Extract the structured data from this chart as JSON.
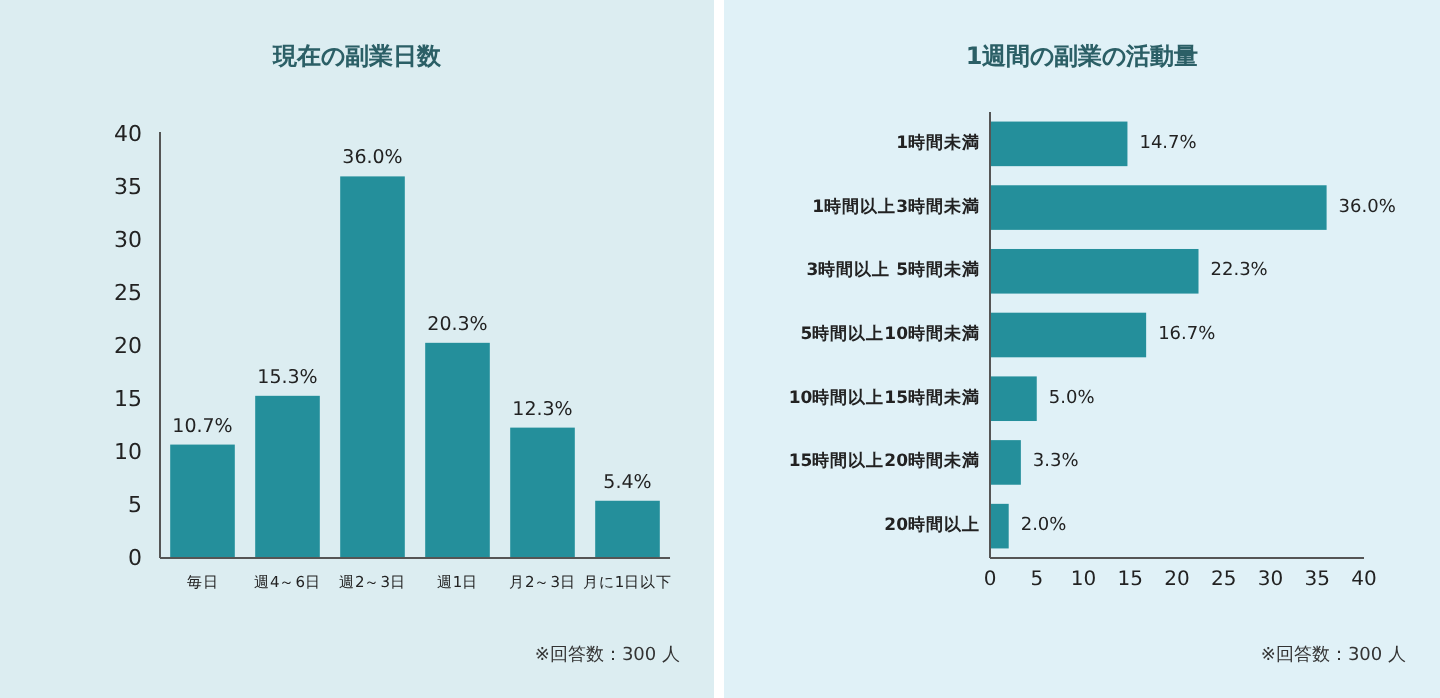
{
  "chart_data": [
    {
      "type": "bar",
      "title": "現在の副業日数",
      "categories": [
        "毎日",
        "週4～6日",
        "週2～3日",
        "週1日",
        "月2～3日",
        "月に1日以下"
      ],
      "values": [
        10.7,
        15.3,
        36.0,
        20.3,
        12.3,
        5.4
      ],
      "value_labels": [
        "10.7%",
        "15.3%",
        "36.0%",
        "20.3%",
        "12.3%",
        "5.4%"
      ],
      "color": "#248f9b",
      "ylim": [
        0,
        40
      ],
      "yticks": [
        0,
        5,
        10,
        15,
        20,
        25,
        30,
        35,
        40
      ],
      "annotations": [
        "※回答数：300 人"
      ]
    },
    {
      "type": "bar",
      "orientation": "horizontal",
      "title": "1週間の副業の活動量",
      "categories": [
        "1時間未満",
        "1時間以上3時間未満",
        "3時間以上 5時間未満",
        "5時間以上10時間未満",
        "10時間以上15時間未満",
        "15時間以上20時間未満",
        "20時間以上"
      ],
      "values": [
        14.7,
        36.0,
        22.3,
        16.7,
        5.0,
        3.3,
        2.0
      ],
      "value_labels": [
        "14.7%",
        "36.0%",
        "22.3%",
        "16.7%",
        "5.0%",
        "3.3%",
        "2.0%"
      ],
      "color": "#248f9b",
      "xlim": [
        0,
        40
      ],
      "xticks": [
        0,
        5,
        10,
        15,
        20,
        25,
        30,
        35,
        40
      ],
      "annotations": [
        "※回答数：300 人"
      ]
    }
  ]
}
